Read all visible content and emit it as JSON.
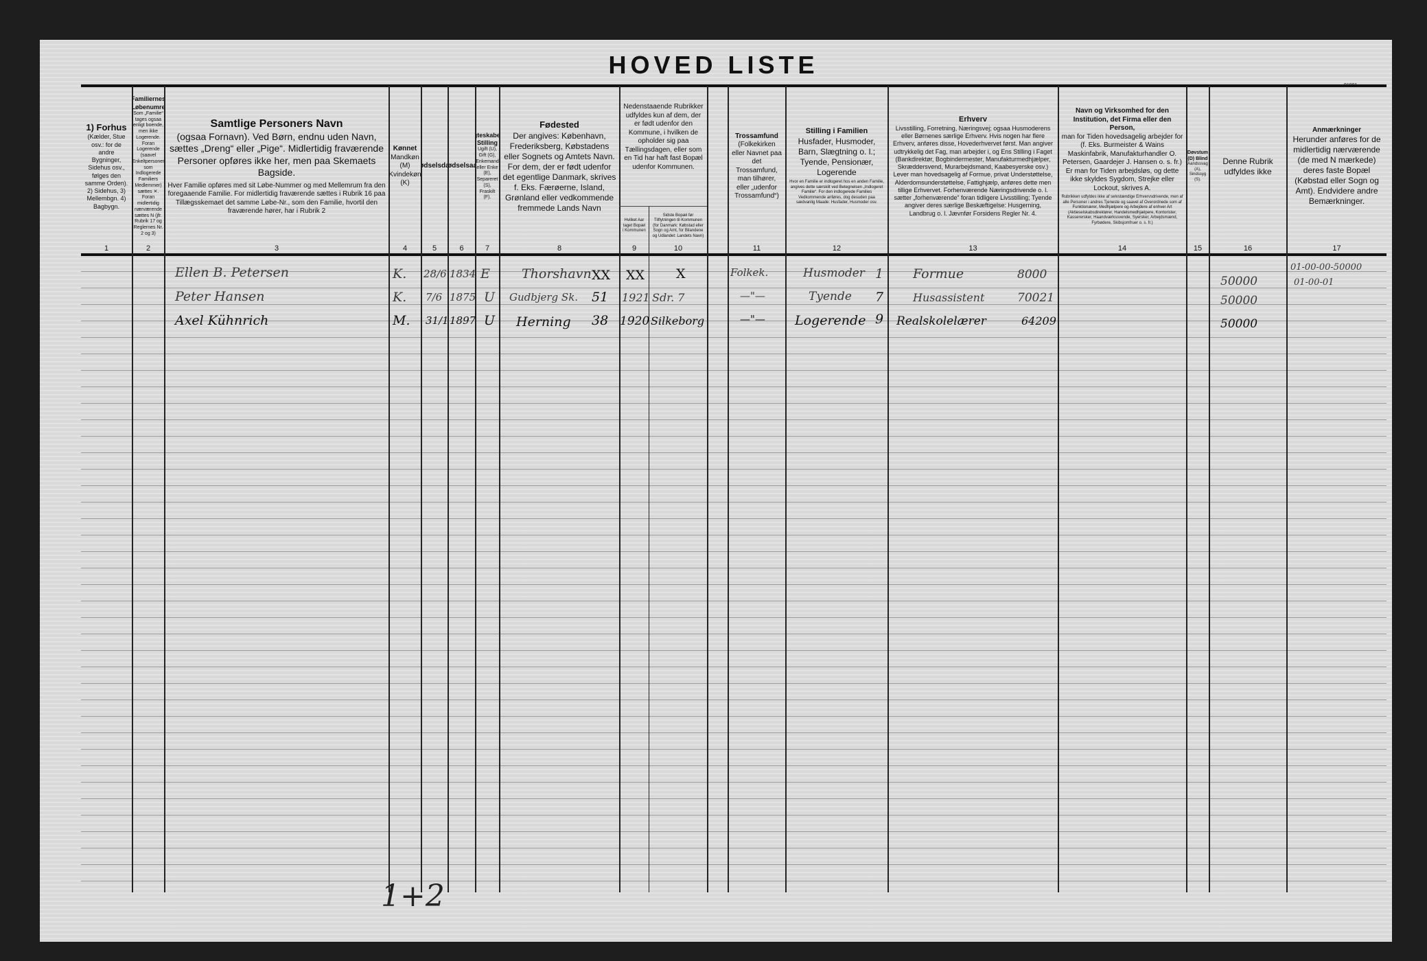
{
  "title": "HOVED LISTE",
  "corner_mark": "91981",
  "columns": [
    {
      "num": "1",
      "heading": "1) Forhus",
      "text": "(Kælder, Stue osv.: for de andre Bygninger, Sidehus osv., følges den samme Orden). 2) Sidehus, 3) Mellembgn. 4) Bagbygn."
    },
    {
      "num": "2",
      "heading": "Familiernes Løbenumre",
      "text": "Som „Familie“ tages ogsaa enligt boende, men ikke Logerende. Foran Logerende (saavel Enkeltpersoner som Indlogerede Familiers Medlemmer) sættes ✕. Foran midlertidig nærværende sættes N (jfr. Rubrik 17 og Reglernes Nr. 2 og 3)"
    },
    {
      "num": "3",
      "heading": "Samtlige Personers Navn",
      "text": "(ogsaa Fornavn). Ved Børn, endnu uden Navn, sættes „Dreng“ eller „Pige“. Midlertidig fraværende Personer opføres ikke her, men paa Skemaets Bagside.",
      "note": "Hver Familie opføres med sit Løbe-Nummer og med Mellemrum fra den foregaaende Familie. For midlertidig fraværende sættes i Rubrik 16 paa Tillægsskemaet det samme Løbe-Nr., som den Familie, hvortil den fraværende hører, har i Rubrik 2"
    },
    {
      "num": "4",
      "heading": "Kønnet",
      "text": "Mandkøn (M) Kvindekøn (K)"
    },
    {
      "num": "5",
      "heading": "Fødselsdag",
      "text": ""
    },
    {
      "num": "6",
      "heading": "Fødselsaar",
      "text": ""
    },
    {
      "num": "7",
      "heading": "Ægteskabelig Stilling",
      "text": "Ugift (U), Gift (G), Enkemand eller Enke (E), Separeret (S), Fraskilt (F)."
    },
    {
      "num": "8",
      "heading": "Fødested",
      "text": "Der angives: København, Frederiksberg, Købstadens eller Sognets og Amtets Navn. For dem, der er født udenfor det egentlige Danmark, skrives f. Eks. Færøerne, Island, Grønland eller vedkommende fremmede Lands Navn"
    },
    {
      "num": "9",
      "heading": "",
      "text": "Nedenstaaende Rubrikker udfyldes kun af dem, der er født udenfor den Kommune, i hvilken de opholder sig paa Tællingsdagen, eller som en Tid har haft fast Bopæl udenfor Kommunen.",
      "sub": "Hvilket Aar taget Bopæl i Kommunen"
    },
    {
      "num": "10",
      "heading": "",
      "text": "",
      "sub": "Sidste Bopæl før Tilflytningen til Kommunen (for Danmark: Købstad eller Sogn og Amt, for Bilandene og Udlandet: Landets Navn)"
    },
    {
      "num": "11",
      "heading": "Trossamfund",
      "text": "(Folkekirken eller Navnet paa det Trossamfund, man tilhører, eller „udenfor Trossamfund“)"
    },
    {
      "num": "12",
      "heading": "Stilling i Familien",
      "text": "Husfader, Husmoder, Barn, Slægtning o. l.; Tyende, Pensionær, Logerende",
      "note": "Hvor en Familie er indlogeret hos en anden Familie, angives dette særskilt ved Betegnelsen „Indlogeret Familie“. For den indlogerede Families Vedkommende anføres, dog desuden paa sædvanlig Maade: Husfader, Husmoder osv."
    },
    {
      "num": "13",
      "heading": "Erhverv",
      "text": "Livsstilling, Forretning, Næringsvej; ogsaa Husmoderens eller Børnenes særlige Erhverv. Hvis nogen har flere Erhverv, anføres disse, Hovederhvervet først. Man angiver udtrykkelig det Fag, man arbejder i, og Ens Stilling i Faget (Bankdirektør, Bogbindermester, Manufakturmedhjælper, Skræddersvend, Murarbejdsmand, Kaabesyerske osv.) Lever man hovedsagelig af Formue, privat Understøttelse, Alderdomsunderstøttelse, Fattighjælp, anføres dette men tillige Erhvervet. Forhenværende Næringsdrivende o. l. sætter „forhenværende“ foran tidligere Livsstilling; Tyende angiver deres særlige Beskæftigelse: Husgerning, Landbrug o. l. Jævnfør Forsidens Regler Nr. 4."
    },
    {
      "num": "14",
      "heading": "Navn og Virksomhed for den Institution, det Firma eller den Person,",
      "text": "man for Tiden hovedsagelig arbejder for (f. Eks. Burmeister & Wains Maskinfabrik, Manufakturhandler O. Petersen, Gaardejer J. Hansen o. s. fr.) Er man for Tiden arbejdsløs, og dette ikke skyldes Sygdom, Strejke eller Lockout, skrives A.",
      "note": "Rubrikken udfyldes ikke af selvstændige Erhvervsdrivende, men af alle Personer i andres Tjeneste og saavel af Overordnede som af Funktionærer, Medhjælpere og Arbejdere af enhver Art (Aktieselskabsdirektører, Handelsmedhjælpere, Kontorister, Kasserersker, Haandværkssvende, Syersker, Arbejdsmænd, Fyrbødere, Skibsjomfruer o. s. fr.)"
    },
    {
      "num": "15",
      "heading": "Døvstum (D) Blind",
      "text": "Aandssvag (A), Sindssyg (S)."
    },
    {
      "num": "16",
      "heading": "",
      "text": "Denne Rubrik udfyldes ikke"
    },
    {
      "num": "17",
      "heading": "Anmærkninger",
      "text": "Herunder anføres for de midlertidig nærværende (de med N mærkede) deres faste Bopæl (Købstad eller Sogn og Amt). Endvidere andre Bemærkninger."
    }
  ],
  "entries": [
    {
      "name": "Ellen B. Petersen",
      "sex": "K.",
      "birthday": "28/6",
      "birth_year": "1834",
      "marital": "E",
      "birthplace": "Thorshavn",
      "place_code": "XX",
      "moved_year": "XX",
      "last_residence": "X",
      "religion": "Folkek.",
      "family_role": "Husmoder",
      "role_code": "1",
      "occupation": "Formue",
      "occ_code": "8000",
      "col16": "50000",
      "col17": "01-00-00-50000",
      "col17b": "01-00-01"
    },
    {
      "name": "Peter Hansen",
      "sex": "K.",
      "birthday": "7/6",
      "birth_year": "1875",
      "marital": "U",
      "birthplace": "Gudbjerg Sk.",
      "place_code": "51",
      "moved_year": "1921",
      "last_residence": "Sdr. 7",
      "religion": "—\"—",
      "family_role": "Tyende",
      "role_code": "7",
      "occupation": "Husassistent",
      "occ_code": "70021",
      "col16": "50000",
      "col17": "",
      "col17b": ""
    },
    {
      "name": "Axel Kühnrich",
      "sex": "M.",
      "birthday": "31/1",
      "birth_year": "1897",
      "marital": "U",
      "birthplace": "Herning",
      "place_code": "38",
      "moved_year": "1920",
      "last_residence": "Silkeborg",
      "religion": "—\"—",
      "family_role": "Logerende",
      "role_code": "9",
      "occupation": "Realskolelærer",
      "occ_code": "64209",
      "col16": "50000",
      "col17": "",
      "col17b": ""
    }
  ],
  "footer_note": "1+2"
}
